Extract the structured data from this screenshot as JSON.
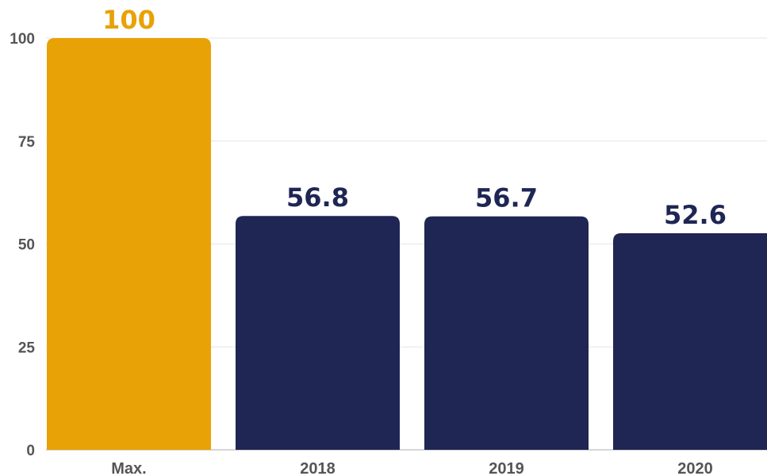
{
  "chart_data": {
    "type": "bar",
    "title": "",
    "xlabel": "",
    "ylabel": "",
    "categories": [
      "Max.",
      "2018",
      "2019",
      "2020"
    ],
    "values": [
      100,
      56.8,
      56.7,
      52.6
    ],
    "value_labels": [
      "100",
      "56.8",
      "56.7",
      "52.6"
    ],
    "ylim": [
      0,
      100
    ],
    "yticks": [
      0,
      25,
      50,
      75,
      100
    ],
    "grid": true,
    "legend": "none",
    "colors": {
      "highlight": "#E8A206",
      "bar": "#1F2654",
      "grid": "#E6E6E6",
      "axis_text": "#555555"
    },
    "highlight_categories": [
      "Max."
    ]
  }
}
